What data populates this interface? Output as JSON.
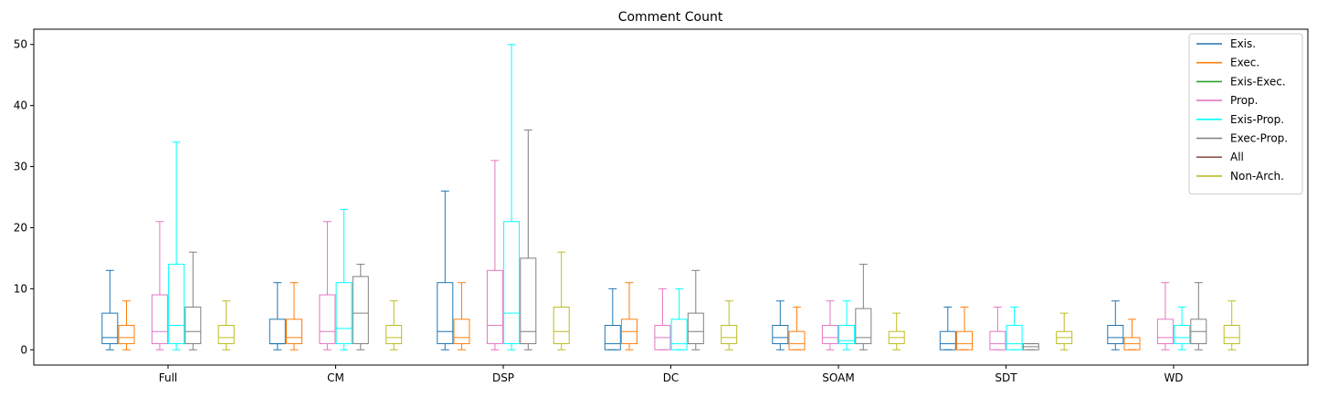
{
  "chart_data": {
    "type": "box",
    "title": "Comment Count",
    "xlabel": "",
    "ylabel": "",
    "ylim": [
      -2.5,
      52.5
    ],
    "yticks": [
      0,
      10,
      20,
      30,
      40,
      50
    ],
    "legend_position": "top-right",
    "grid": false,
    "categories": [
      "Full",
      "CM",
      "DSP",
      "DC",
      "SOAM",
      "SDT",
      "WD"
    ],
    "series": [
      {
        "name": "Exis.",
        "color": "#1f77b4",
        "boxes": [
          {
            "whislo": 0,
            "q1": 1,
            "med": 2,
            "q3": 6,
            "whishi": 13
          },
          {
            "whislo": 0,
            "q1": 1,
            "med": 1,
            "q3": 5,
            "whishi": 11
          },
          {
            "whislo": 0,
            "q1": 1,
            "med": 3,
            "q3": 11,
            "whishi": 26
          },
          {
            "whislo": 0,
            "q1": 0,
            "med": 1,
            "q3": 4,
            "whishi": 10
          },
          {
            "whislo": 0,
            "q1": 1,
            "med": 2,
            "q3": 4,
            "whishi": 8
          },
          {
            "whislo": 0,
            "q1": 0,
            "med": 1,
            "q3": 3,
            "whishi": 7
          },
          {
            "whislo": 0,
            "q1": 1,
            "med": 2,
            "q3": 4,
            "whishi": 8
          }
        ]
      },
      {
        "name": "Exec.",
        "color": "#ff7f0e",
        "boxes": [
          {
            "whislo": 0,
            "q1": 1,
            "med": 2,
            "q3": 4,
            "whishi": 8
          },
          {
            "whislo": 0,
            "q1": 1,
            "med": 2,
            "q3": 5,
            "whishi": 11
          },
          {
            "whislo": 0,
            "q1": 1,
            "med": 2,
            "q3": 5,
            "whishi": 11
          },
          {
            "whislo": 0,
            "q1": 1,
            "med": 3,
            "q3": 5,
            "whishi": 11
          },
          {
            "whislo": 0,
            "q1": 0,
            "med": 1,
            "q3": 3,
            "whishi": 7
          },
          {
            "whislo": 0,
            "q1": 0,
            "med": 1,
            "q3": 3,
            "whishi": 7
          },
          {
            "whislo": 0,
            "q1": 0,
            "med": 1,
            "q3": 2,
            "whishi": 5
          }
        ]
      },
      {
        "name": "Exis-Exec.",
        "color": "#2ca02c",
        "boxes": []
      },
      {
        "name": "Prop.",
        "color": "#e377c2",
        "boxes": [
          {
            "whislo": 0,
            "q1": 1,
            "med": 3,
            "q3": 9,
            "whishi": 21
          },
          {
            "whislo": 0,
            "q1": 1,
            "med": 3,
            "q3": 9,
            "whishi": 21
          },
          {
            "whislo": 0,
            "q1": 1,
            "med": 4,
            "q3": 13,
            "whishi": 31
          },
          {
            "whislo": 0,
            "q1": 0,
            "med": 2,
            "q3": 4,
            "whishi": 10
          },
          {
            "whislo": 0,
            "q1": 1,
            "med": 2,
            "q3": 4,
            "whishi": 8
          },
          {
            "whislo": 0,
            "q1": 0,
            "med": 1,
            "q3": 3,
            "whishi": 7
          },
          {
            "whislo": 0,
            "q1": 1,
            "med": 2,
            "q3": 5,
            "whishi": 11
          }
        ]
      },
      {
        "name": "Exis-Prop.",
        "color": "#00ffff",
        "boxes": [
          {
            "whislo": 0,
            "q1": 1,
            "med": 4,
            "q3": 14,
            "whishi": 34
          },
          {
            "whislo": 0,
            "q1": 1,
            "med": 3.5,
            "q3": 11,
            "whishi": 23
          },
          {
            "whislo": 0,
            "q1": 1,
            "med": 6,
            "q3": 21,
            "whishi": 50
          },
          {
            "whislo": 0,
            "q1": 0,
            "med": 1,
            "q3": 5,
            "whishi": 10
          },
          {
            "whislo": 0,
            "q1": 1,
            "med": 1.5,
            "q3": 4,
            "whishi": 8
          },
          {
            "whislo": 0,
            "q1": 0,
            "med": 1,
            "q3": 4,
            "whishi": 7
          },
          {
            "whislo": 0,
            "q1": 1,
            "med": 2,
            "q3": 4,
            "whishi": 7
          }
        ]
      },
      {
        "name": "Exec-Prop.",
        "color": "#7f7f7f",
        "boxes": [
          {
            "whislo": 0,
            "q1": 1,
            "med": 3,
            "q3": 7,
            "whishi": 16
          },
          {
            "whislo": 0,
            "q1": 1,
            "med": 6,
            "q3": 12,
            "whishi": 14
          },
          {
            "whislo": 0,
            "q1": 1,
            "med": 3,
            "q3": 15,
            "whishi": 36
          },
          {
            "whislo": 0,
            "q1": 1,
            "med": 3,
            "q3": 6,
            "whishi": 13
          },
          {
            "whislo": 0,
            "q1": 1,
            "med": 2,
            "q3": 6.75,
            "whishi": 14
          },
          {
            "whislo": 0,
            "q1": 0,
            "med": 0.5,
            "q3": 1,
            "whishi": 1
          },
          {
            "whislo": 0,
            "q1": 1,
            "med": 3,
            "q3": 5,
            "whishi": 11
          }
        ]
      },
      {
        "name": "All",
        "color": "#8c564b",
        "boxes": []
      },
      {
        "name": "Non-Arch.",
        "color": "#bcbd22",
        "boxes": [
          {
            "whislo": 0,
            "q1": 1,
            "med": 2,
            "q3": 4,
            "whishi": 8
          },
          {
            "whislo": 0,
            "q1": 1,
            "med": 2,
            "q3": 4,
            "whishi": 8
          },
          {
            "whislo": 0,
            "q1": 1,
            "med": 3,
            "q3": 7,
            "whishi": 16
          },
          {
            "whislo": 0,
            "q1": 1,
            "med": 2,
            "q3": 4,
            "whishi": 8
          },
          {
            "whislo": 0,
            "q1": 1,
            "med": 2,
            "q3": 3,
            "whishi": 6
          },
          {
            "whislo": 0,
            "q1": 1,
            "med": 2,
            "q3": 3,
            "whishi": 6
          },
          {
            "whislo": 0,
            "q1": 1,
            "med": 2,
            "q3": 4,
            "whishi": 8
          }
        ]
      }
    ]
  }
}
